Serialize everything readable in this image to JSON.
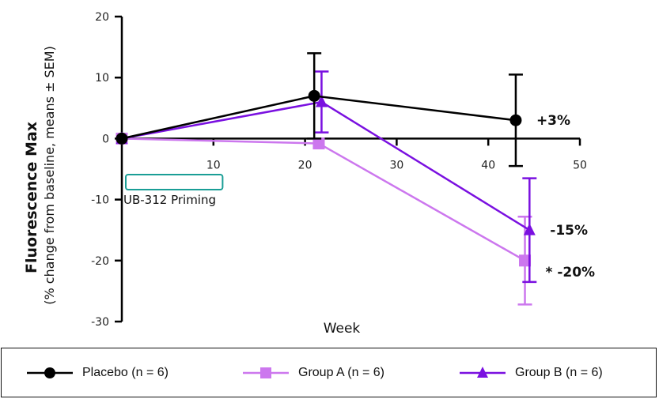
{
  "chart_data": {
    "type": "line",
    "xlabel": "Week",
    "ylabel": "Fluorescence Max",
    "ylabel_sub": "(% change from baseline, means ± SEM)",
    "xlim": [
      0,
      50
    ],
    "ylim": [
      -30,
      20
    ],
    "x_ticks": [
      10,
      20,
      30,
      40,
      50
    ],
    "y_ticks": [
      -30,
      -20,
      -10,
      0,
      10,
      20
    ],
    "x_tick_labels": [
      "10",
      "20",
      "30",
      "40",
      "50"
    ],
    "y_tick_labels": [
      "-30",
      "-20",
      "-10",
      "0",
      "10",
      "20"
    ],
    "priming_label": "UB-312 Priming",
    "priming_range": [
      0,
      11
    ],
    "series": [
      {
        "name": "Placebo",
        "legend": "Placebo (n = 6)",
        "color": "#000000",
        "marker": "circle",
        "x": [
          0,
          21,
          43
        ],
        "y": [
          0,
          7,
          3
        ],
        "err": [
          0,
          7,
          7.5
        ]
      },
      {
        "name": "Group A",
        "legend": "Group A (n = 6)",
        "color": "#cc77ee",
        "marker": "square",
        "x": [
          0,
          21.5,
          44
        ],
        "y": [
          0,
          -0.8,
          -20
        ],
        "err": [
          0,
          0,
          7.2
        ]
      },
      {
        "name": "Group B",
        "legend": "Group B (n = 6)",
        "color": "#7a10e0",
        "marker": "triangle",
        "x": [
          0,
          21.8,
          44.5
        ],
        "y": [
          0,
          6,
          -15
        ],
        "err": [
          0,
          5,
          8.5
        ]
      }
    ],
    "annotations": [
      {
        "text": "+3%",
        "series": "Placebo"
      },
      {
        "text": "-15%",
        "series": "Group B"
      },
      {
        "text": "* -20%",
        "series": "Group A"
      }
    ]
  }
}
